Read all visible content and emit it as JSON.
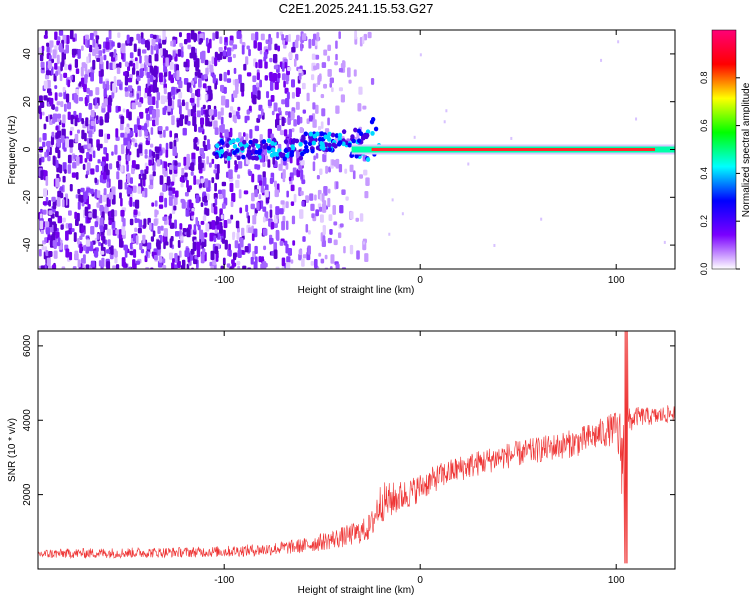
{
  "title": "C2E1.2025.241.15.53.G27",
  "chart_data": [
    {
      "type": "heatmap",
      "xlabel": "Height of straight line (km)",
      "ylabel": "Frequency (Hz)",
      "xlim": [
        -195,
        130
      ],
      "ylim": [
        -50,
        50
      ],
      "xticks": [
        -100,
        0,
        100
      ],
      "xtick_labels": [
        "-100",
        "0",
        "100"
      ],
      "yticks": [
        -40,
        -20,
        0,
        20,
        40
      ],
      "ytick_labels": [
        "-40",
        "-20",
        "0",
        "20",
        "40"
      ],
      "carrier_frequency_hz": 0,
      "carrier_start_km": -35,
      "colorbar": {
        "label": "Normalized spectral amplitude",
        "range": [
          0,
          1
        ],
        "ticks": [
          0.0,
          0.2,
          0.4,
          0.6,
          0.8
        ],
        "tick_labels": [
          "0.0",
          "0.2",
          "0.4",
          "0.6",
          "0.8"
        ],
        "colormap": [
          "#ffffff",
          "#7a00ff",
          "#0000ff",
          "#00ffff",
          "#00ff00",
          "#ffff00",
          "#ff0000",
          "#ff0077"
        ]
      },
      "grid": false
    },
    {
      "type": "line",
      "xlabel": "Height of straight line (km)",
      "ylabel": "SNR (10 * v/v)",
      "xlim": [
        -195,
        130
      ],
      "ylim": [
        0,
        6400
      ],
      "xticks": [
        -100,
        0,
        100
      ],
      "xtick_labels": [
        "-100",
        "0",
        "100"
      ],
      "yticks": [
        2000,
        4000,
        6000
      ],
      "ytick_labels": [
        "2000",
        "4000",
        "6000"
      ],
      "series_color": "#ee3333",
      "series": [
        {
          "x": [
            -195,
            -180,
            -160,
            -140,
            -120,
            -100,
            -80,
            -60,
            -40,
            -30,
            -25,
            -22,
            -20,
            -15,
            -10,
            -5,
            0,
            10,
            20,
            40,
            60,
            80,
            90,
            100,
            104,
            106,
            108,
            110,
            120,
            130
          ],
          "mean": [
            400,
            420,
            430,
            440,
            450,
            470,
            520,
            620,
            850,
            1000,
            1150,
            1600,
            1800,
            1850,
            1950,
            2050,
            2200,
            2500,
            2700,
            3000,
            3200,
            3400,
            3600,
            3800,
            2900,
            3900,
            4000,
            4100,
            4100,
            4200
          ],
          "spread": [
            130,
            130,
            140,
            140,
            140,
            150,
            170,
            200,
            280,
            320,
            380,
            500,
            550,
            480,
            430,
            400,
            380,
            350,
            350,
            350,
            350,
            380,
            400,
            450,
            1500,
            450,
            300,
            260,
            240,
            240
          ]
        }
      ],
      "grid": false
    }
  ]
}
